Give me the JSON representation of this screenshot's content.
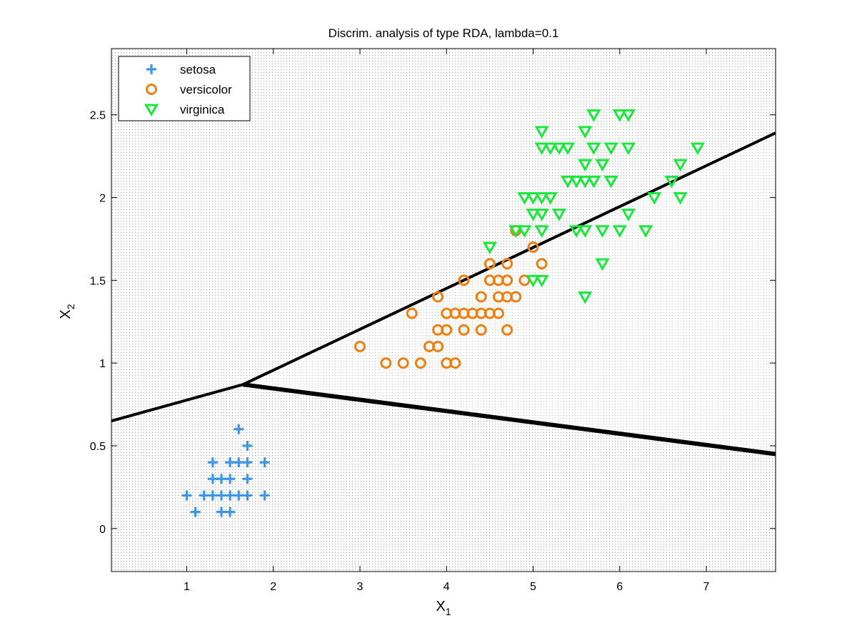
{
  "chart_data": {
    "type": "scatter",
    "title": "Discrim. analysis of type RDA, lambda=0.1",
    "xlabel": {
      "base": "X",
      "sub": "1"
    },
    "ylabel": {
      "base": "X",
      "sub": "2"
    },
    "xlim": [
      0.13,
      7.8
    ],
    "ylim": [
      -0.26,
      2.9
    ],
    "xticks": [
      "1",
      "2",
      "3",
      "4",
      "5",
      "6",
      "7"
    ],
    "xtick_values": [
      1,
      2,
      3,
      4,
      5,
      6,
      7
    ],
    "yticks": [
      "0",
      "0.5",
      "1",
      "1.5",
      "2",
      "2.5"
    ],
    "ytick_values": [
      0,
      0.5,
      1,
      1.5,
      2,
      2.5
    ],
    "grid": false,
    "legend_position": "top-left",
    "series": [
      {
        "name": "setosa",
        "marker": "plus",
        "color": "#3a96e8",
        "points": [
          [
            1.0,
            0.2
          ],
          [
            1.1,
            0.1
          ],
          [
            1.2,
            0.2
          ],
          [
            1.3,
            0.2
          ],
          [
            1.3,
            0.3
          ],
          [
            1.3,
            0.4
          ],
          [
            1.4,
            0.1
          ],
          [
            1.4,
            0.2
          ],
          [
            1.4,
            0.3
          ],
          [
            1.5,
            0.1
          ],
          [
            1.5,
            0.2
          ],
          [
            1.5,
            0.3
          ],
          [
            1.5,
            0.4
          ],
          [
            1.6,
            0.2
          ],
          [
            1.6,
            0.4
          ],
          [
            1.6,
            0.6
          ],
          [
            1.7,
            0.2
          ],
          [
            1.7,
            0.3
          ],
          [
            1.7,
            0.4
          ],
          [
            1.7,
            0.5
          ],
          [
            1.9,
            0.2
          ],
          [
            1.9,
            0.4
          ]
        ]
      },
      {
        "name": "versicolor",
        "marker": "circle",
        "color": "#f07f10",
        "points": [
          [
            3.0,
            1.1
          ],
          [
            3.3,
            1.0
          ],
          [
            3.5,
            1.0
          ],
          [
            3.6,
            1.3
          ],
          [
            3.7,
            1.0
          ],
          [
            3.8,
            1.1
          ],
          [
            3.9,
            1.1
          ],
          [
            3.9,
            1.2
          ],
          [
            3.9,
            1.4
          ],
          [
            4.0,
            1.0
          ],
          [
            4.0,
            1.2
          ],
          [
            4.0,
            1.3
          ],
          [
            4.1,
            1.0
          ],
          [
            4.1,
            1.3
          ],
          [
            4.2,
            1.2
          ],
          [
            4.2,
            1.3
          ],
          [
            4.2,
            1.5
          ],
          [
            4.3,
            1.3
          ],
          [
            4.4,
            1.2
          ],
          [
            4.4,
            1.3
          ],
          [
            4.4,
            1.4
          ],
          [
            4.5,
            1.3
          ],
          [
            4.5,
            1.5
          ],
          [
            4.5,
            1.6
          ],
          [
            4.6,
            1.3
          ],
          [
            4.6,
            1.4
          ],
          [
            4.6,
            1.5
          ],
          [
            4.7,
            1.2
          ],
          [
            4.7,
            1.4
          ],
          [
            4.7,
            1.5
          ],
          [
            4.7,
            1.6
          ],
          [
            4.8,
            1.4
          ],
          [
            4.8,
            1.8
          ],
          [
            4.9,
            1.5
          ],
          [
            5.0,
            1.7
          ],
          [
            5.1,
            1.6
          ]
        ]
      },
      {
        "name": "virginica",
        "marker": "triangle-down",
        "color": "#18e83a",
        "points": [
          [
            4.5,
            1.7
          ],
          [
            4.8,
            1.8
          ],
          [
            4.9,
            1.8
          ],
          [
            4.9,
            2.0
          ],
          [
            5.0,
            1.5
          ],
          [
            5.0,
            1.9
          ],
          [
            5.0,
            2.0
          ],
          [
            5.1,
            1.5
          ],
          [
            5.1,
            1.8
          ],
          [
            5.1,
            1.9
          ],
          [
            5.1,
            2.0
          ],
          [
            5.1,
            2.3
          ],
          [
            5.1,
            2.4
          ],
          [
            5.2,
            2.0
          ],
          [
            5.2,
            2.3
          ],
          [
            5.3,
            1.9
          ],
          [
            5.3,
            2.3
          ],
          [
            5.4,
            2.1
          ],
          [
            5.4,
            2.3
          ],
          [
            5.5,
            1.8
          ],
          [
            5.5,
            2.1
          ],
          [
            5.6,
            1.4
          ],
          [
            5.6,
            1.8
          ],
          [
            5.6,
            2.1
          ],
          [
            5.6,
            2.2
          ],
          [
            5.6,
            2.4
          ],
          [
            5.7,
            2.1
          ],
          [
            5.7,
            2.3
          ],
          [
            5.7,
            2.5
          ],
          [
            5.8,
            1.6
          ],
          [
            5.8,
            1.8
          ],
          [
            5.8,
            2.2
          ],
          [
            5.9,
            2.1
          ],
          [
            5.9,
            2.3
          ],
          [
            6.0,
            1.8
          ],
          [
            6.0,
            2.5
          ],
          [
            6.1,
            1.9
          ],
          [
            6.1,
            2.3
          ],
          [
            6.1,
            2.5
          ],
          [
            6.3,
            1.8
          ],
          [
            6.4,
            2.0
          ],
          [
            6.6,
            2.1
          ],
          [
            6.7,
            2.0
          ],
          [
            6.7,
            2.2
          ],
          [
            6.9,
            2.3
          ]
        ]
      }
    ],
    "boundaries": [
      {
        "name": "",
        "points": [
          [
            0.13,
            0.65
          ],
          [
            1.65,
            0.87
          ],
          [
            7.8,
            2.39
          ]
        ]
      },
      {
        "name": "",
        "points": [
          [
            1.65,
            0.87
          ],
          [
            7.8,
            0.45
          ]
        ]
      }
    ],
    "regions": [
      {
        "class": "setosa",
        "color": "#3a96e8"
      },
      {
        "class": "versicolor",
        "color": "#f07f10"
      },
      {
        "class": "virginica",
        "color": "#18e83a"
      }
    ]
  }
}
